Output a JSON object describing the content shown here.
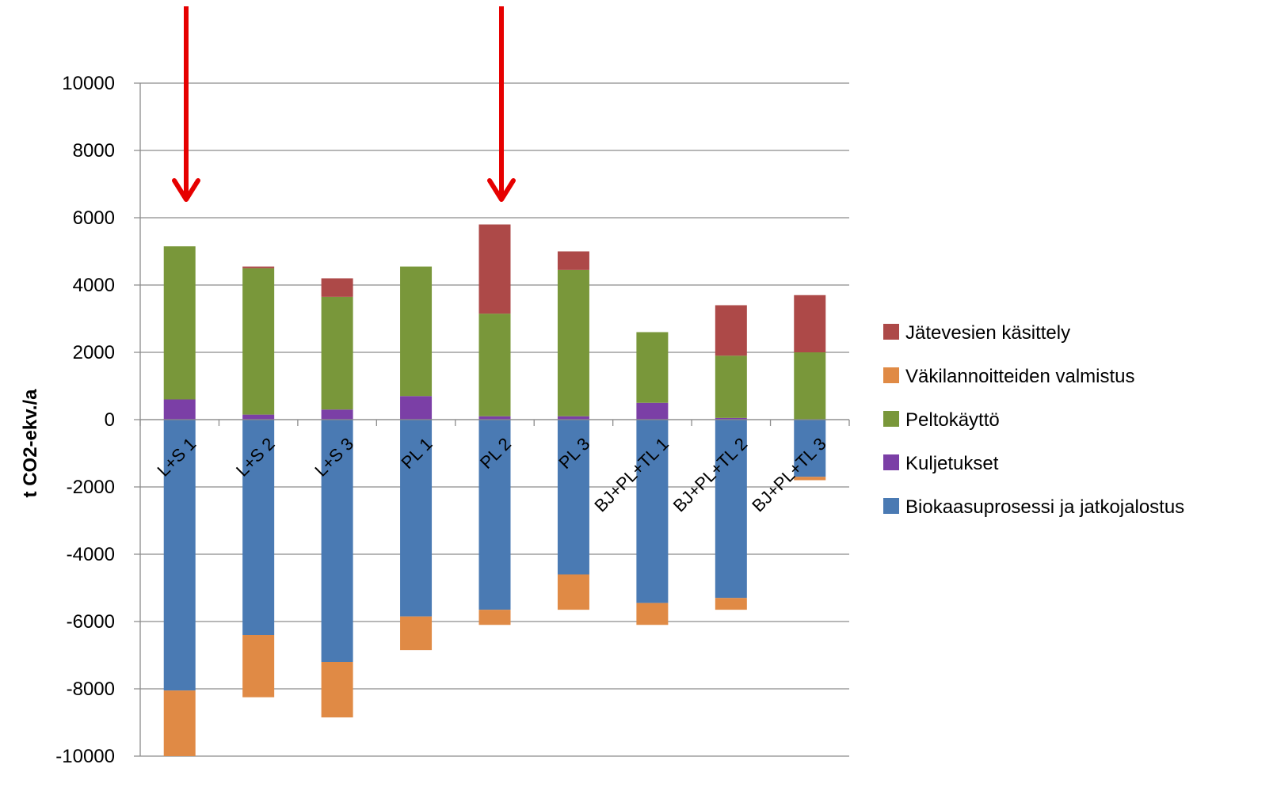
{
  "chart_data": {
    "type": "bar",
    "stacked": true,
    "title": "",
    "xlabel": "",
    "ylabel": "t CO2-ekv./a",
    "ylim": [
      -10000,
      10000
    ],
    "yticks": [
      10000,
      8000,
      6000,
      4000,
      2000,
      0,
      -2000,
      -4000,
      -6000,
      -8000,
      -10000
    ],
    "grid": true,
    "legend_position": "right",
    "categories": [
      "L+S 1",
      "L+S 2",
      "L+S 3",
      "PL 1",
      "PL 2",
      "PL 3",
      "BJ+PL+TL 1",
      "BJ+PL+TL 2",
      "BJ+PL+TL 3"
    ],
    "series": [
      {
        "name": "Biokaasuprosessi ja jatkojalostus",
        "color": "#4a7ab3",
        "values": [
          -8050,
          -6400,
          -7200,
          -5850,
          -5650,
          -4600,
          -5450,
          -5300,
          -1700
        ]
      },
      {
        "name": "Kuljetukset",
        "color": "#7b3fa6",
        "values": [
          600,
          150,
          300,
          700,
          100,
          100,
          500,
          50,
          0
        ]
      },
      {
        "name": "Peltokäyttö",
        "color": "#79973a",
        "values": [
          4550,
          4350,
          3350,
          3850,
          3050,
          4350,
          2100,
          1850,
          2000
        ]
      },
      {
        "name": "Väkilannoitteiden valmistus",
        "color": "#e08a45",
        "values": [
          -1950,
          -1850,
          -1650,
          -1000,
          -450,
          -1050,
          -650,
          -350,
          -100
        ]
      },
      {
        "name": "Jätevesien käsittely",
        "color": "#ad4948",
        "values": [
          0,
          50,
          550,
          0,
          2650,
          550,
          0,
          1500,
          1700
        ]
      }
    ],
    "legend_order": [
      "Jätevesien käsittely",
      "Väkilannoitteiden valmistus",
      "Peltokäyttö",
      "Kuljetukset",
      "Biokaasuprosessi ja jatkojalostus"
    ],
    "annotations": [
      {
        "type": "arrow",
        "target_category": "L+S 1",
        "color": "#e60000"
      },
      {
        "type": "arrow",
        "target_category": "PL 2",
        "color": "#e60000"
      }
    ]
  }
}
